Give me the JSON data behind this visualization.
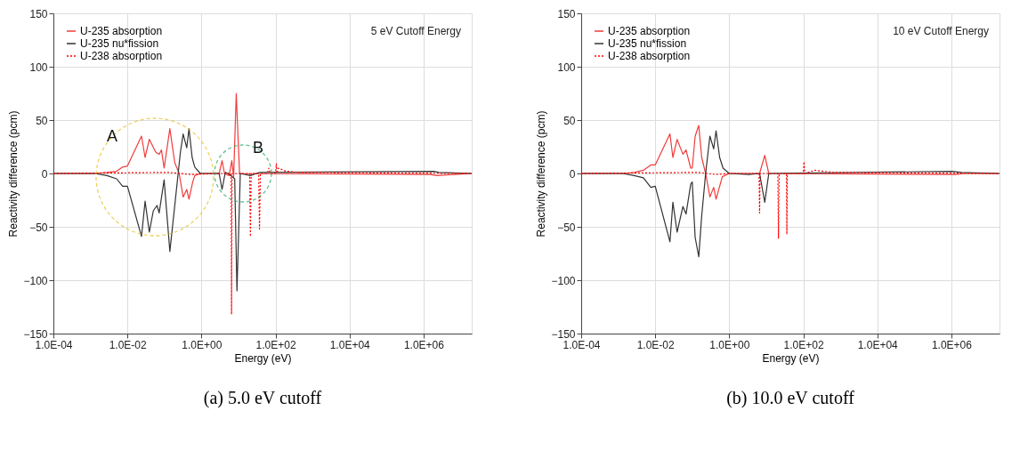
{
  "chart_data": [
    {
      "type": "line",
      "title": "(a) 5.0 eV cutoff",
      "xlabel": "Energy (eV)",
      "ylabel": "Reactivity difference (pcm)",
      "log": "x",
      "xlim": [
        0.0001,
        20000000
      ],
      "ylim": [
        -150,
        150
      ],
      "xticks": [
        {
          "value": 0.0001,
          "label": "1.0E-04"
        },
        {
          "value": 0.01,
          "label": "1.0E-02"
        },
        {
          "value": 1,
          "label": "1.0E+00"
        },
        {
          "value": 100,
          "label": "1.0E+02"
        },
        {
          "value": 10000,
          "label": "1.0E+04"
        },
        {
          "value": 1000000,
          "label": "1.0E+06"
        }
      ],
      "yticks": [
        -150,
        -100,
        -50,
        0,
        50,
        100,
        150
      ],
      "grid": true,
      "legend": "top left",
      "annotations": [
        "5 eV Cutoff Energy",
        "A",
        "B"
      ],
      "series": [
        {
          "name": "U-235 absorption",
          "color": "#f03c3c",
          "line_style": "solid",
          "x": [
            0.0001,
            0.0013,
            0.0028,
            0.0051,
            0.0074,
            0.01,
            0.024,
            0.03,
            0.039,
            0.058,
            0.072,
            0.083,
            0.098,
            0.14,
            0.19,
            0.25,
            0.32,
            0.4,
            0.46,
            0.58,
            0.66,
            0.93,
            3,
            3.6,
            4.2,
            5.6,
            6.6,
            7.4,
            8.7,
            10.7,
            1500000,
            2300000,
            20000000
          ],
          "values": [
            0,
            0,
            1,
            2,
            6,
            7,
            35,
            15,
            32,
            20,
            18,
            22,
            5,
            42,
            10,
            0,
            -22,
            -15,
            -24,
            -8,
            -2,
            0,
            0,
            12,
            0,
            -2,
            12,
            -3,
            75,
            0,
            -1,
            -2,
            0
          ]
        },
        {
          "name": "U-235 nu*fission",
          "color": "#333333",
          "line_style": "solid",
          "x": [
            0.0001,
            0.0013,
            0.0028,
            0.0051,
            0.0074,
            0.01,
            0.024,
            0.03,
            0.039,
            0.05,
            0.063,
            0.072,
            0.098,
            0.14,
            0.19,
            0.27,
            0.32,
            0.4,
            0.46,
            0.56,
            0.66,
            0.93,
            3,
            3.6,
            4.4,
            5.3,
            7.9,
            9.1,
            11.2,
            21,
            37,
            1900000,
            2600000,
            20000000
          ],
          "values": [
            0,
            0,
            -2,
            -5,
            -12,
            -12,
            -59,
            -26,
            -55,
            -35,
            -30,
            -37,
            -6,
            -73,
            -30,
            20,
            37,
            24,
            42,
            15,
            6,
            0,
            0,
            -15,
            1,
            0,
            -5,
            -110,
            0,
            -2,
            1,
            2,
            1,
            0
          ]
        },
        {
          "name": "U-238 absorption",
          "color": "#ff0000",
          "line_style": "dotted",
          "x": [
            0.0001,
            0.13,
            0.52,
            3,
            6.3,
            6.5,
            6.7,
            20,
            21,
            22,
            35,
            37,
            39,
            60,
            66,
            72,
            100,
            105,
            110,
            120,
            195,
            460,
            20000000
          ],
          "values": [
            0,
            1,
            -1,
            0,
            0,
            -132,
            0,
            0,
            -59,
            0,
            0,
            -52,
            0,
            0,
            5,
            0,
            0,
            9,
            0,
            5,
            2,
            1,
            0
          ]
        }
      ]
    },
    {
      "type": "line",
      "title": "(b) 10.0 eV cutoff",
      "xlabel": "Energy (eV)",
      "ylabel": "Reactivity difference (pcm)",
      "log": "x",
      "xlim": [
        0.0001,
        20000000
      ],
      "ylim": [
        -150,
        150
      ],
      "xticks": [
        {
          "value": 0.0001,
          "label": "1.0E-04"
        },
        {
          "value": 0.01,
          "label": "1.0E-02"
        },
        {
          "value": 1,
          "label": "1.0E+00"
        },
        {
          "value": 100,
          "label": "1.0E+02"
        },
        {
          "value": 10000,
          "label": "1.0E+04"
        },
        {
          "value": 1000000,
          "label": "1.0E+06"
        }
      ],
      "yticks": [
        -150,
        -100,
        -50,
        0,
        50,
        100,
        150
      ],
      "grid": true,
      "legend": "top left",
      "annotations": [
        "10 eV Cutoff Energy"
      ],
      "series": [
        {
          "name": "U-235 absorption",
          "color": "#f03c3c",
          "line_style": "solid",
          "x": [
            0.0001,
            0.0013,
            0.0027,
            0.0048,
            0.0076,
            0.01,
            0.025,
            0.03,
            0.039,
            0.056,
            0.068,
            0.091,
            0.1,
            0.12,
            0.15,
            0.18,
            0.23,
            0.3,
            0.38,
            0.44,
            0.65,
            1,
            6.6,
            9.1,
            11.7,
            1300000,
            2300000,
            20000000
          ],
          "values": [
            0,
            0,
            1,
            3,
            8,
            8,
            37,
            15,
            32,
            18,
            22,
            5,
            5,
            35,
            45,
            15,
            0,
            -22,
            -13,
            -24,
            -3,
            0,
            0,
            17,
            0,
            -1,
            0,
            0
          ]
        },
        {
          "name": "U-235 nu*fission",
          "color": "#333333",
          "line_style": "solid",
          "x": [
            0.0001,
            0.0013,
            0.0027,
            0.0048,
            0.0076,
            0.01,
            0.025,
            0.03,
            0.039,
            0.056,
            0.068,
            0.091,
            0.1,
            0.12,
            0.15,
            0.18,
            0.23,
            0.3,
            0.38,
            0.44,
            0.55,
            0.68,
            1,
            3.4,
            6.6,
            9.1,
            11.7,
            1050000,
            1900000,
            20000000
          ],
          "values": [
            0,
            0,
            -2,
            -4,
            -13,
            -12,
            -64,
            -27,
            -55,
            -31,
            -38,
            -10,
            -8,
            -60,
            -78,
            -40,
            0,
            35,
            23,
            40,
            15,
            5,
            0,
            -1,
            0,
            -27,
            0,
            2,
            1,
            0
          ]
        },
        {
          "name": "U-238 absorption",
          "color": "#ff0000",
          "line_style": "dotted",
          "x": [
            0.0001,
            0.15,
            0.44,
            1,
            6.4,
            6.6,
            6.8,
            20.5,
            21.4,
            22.3,
            35,
            36,
            37,
            100,
            105,
            110,
            204,
            630,
            20000000
          ],
          "values": [
            0,
            1,
            -1,
            0,
            0,
            -37,
            0,
            0,
            -61,
            0,
            0,
            -57,
            0,
            0,
            11,
            0,
            3,
            1,
            0
          ]
        }
      ]
    }
  ]
}
